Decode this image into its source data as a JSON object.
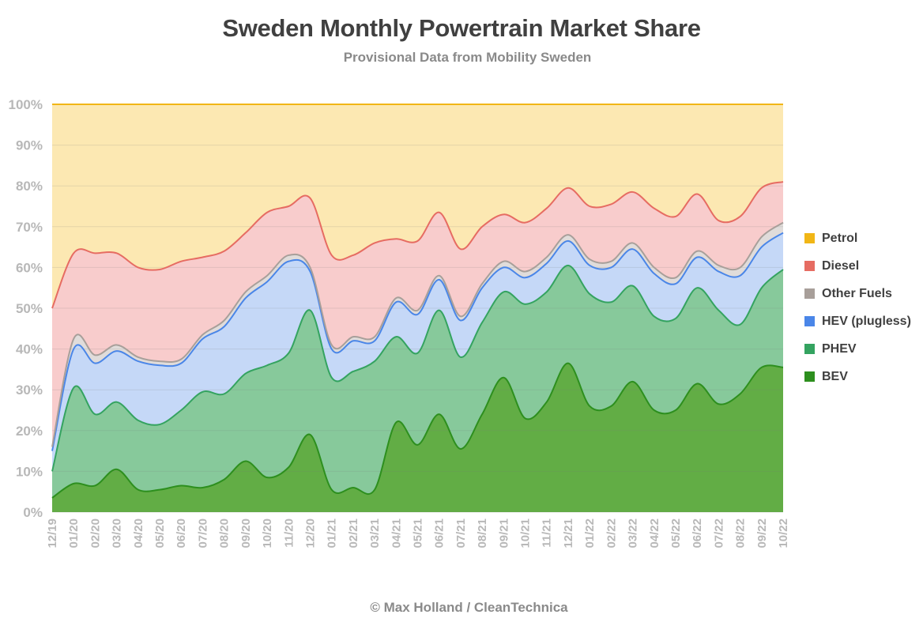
{
  "title": "Sweden Monthly Powertrain Market Share",
  "subtitle": "Provisional Data from Mobility Sweden",
  "credit": "© Max Holland / CleanTechnica",
  "chart_data": {
    "type": "area",
    "stacked": true,
    "ylim": [
      0,
      100
    ],
    "y_ticks": [
      "0%",
      "10%",
      "20%",
      "30%",
      "40%",
      "50%",
      "60%",
      "70%",
      "80%",
      "90%",
      "100%"
    ],
    "grid": true,
    "legend_position": "right",
    "categories": [
      "12/19",
      "01/20",
      "02/20",
      "03/20",
      "04/20",
      "05/20",
      "06/20",
      "07/20",
      "08/20",
      "09/20",
      "10/20",
      "11/20",
      "12/20",
      "01/21",
      "02/21",
      "03/21",
      "04/21",
      "05/21",
      "06/21",
      "07/21",
      "08/21",
      "09/21",
      "10/21",
      "11/21",
      "12/21",
      "01/22",
      "02/22",
      "03/22",
      "04/22",
      "05/22",
      "06/22",
      "07/22",
      "08/22",
      "09/22",
      "10/22"
    ],
    "series": [
      {
        "name": "BEV",
        "color": "#2d8f1e",
        "fill": "#62ad45",
        "values": [
          3.5,
          7,
          6.5,
          10.5,
          5.5,
          5.5,
          6.5,
          6,
          8,
          12.5,
          8.5,
          11,
          19,
          5.5,
          6,
          5.5,
          22,
          16.5,
          24,
          15.5,
          24,
          33,
          23,
          27,
          36.5,
          26,
          26,
          32,
          25,
          25,
          31.5,
          26.5,
          29,
          35.5,
          35.5
        ]
      },
      {
        "name": "PHEV",
        "color": "#34a360",
        "fill": "#87c99b",
        "values": [
          6.5,
          23.5,
          17.5,
          16.5,
          17,
          16,
          18.5,
          23.5,
          21,
          21.5,
          27.5,
          28,
          30.5,
          27.5,
          28.5,
          31.5,
          21,
          22.5,
          25.5,
          22.5,
          22.5,
          21,
          28,
          27,
          24,
          27.5,
          25.5,
          23.5,
          23,
          22.5,
          23.5,
          23,
          17,
          19.5,
          24
        ]
      },
      {
        "name": "HEV (plugless)",
        "color": "#4a86e8",
        "fill": "#c5d8f7",
        "values": [
          5,
          9.5,
          12.5,
          12.5,
          14.5,
          14.5,
          11.5,
          13,
          16.5,
          18.5,
          20.5,
          22.5,
          9.5,
          7,
          7.5,
          5,
          8.5,
          9.5,
          7.5,
          9,
          8.5,
          6,
          6.5,
          7,
          6,
          7,
          8.5,
          9,
          10.5,
          8.5,
          7.5,
          9.5,
          12,
          10,
          9
        ]
      },
      {
        "name": "Other Fuels",
        "color": "#a89f9a",
        "fill": "#e0dcda",
        "values": [
          1,
          2.5,
          2,
          1.5,
          1,
          1,
          1,
          1,
          1.5,
          1.5,
          1.5,
          1.5,
          1,
          1,
          1,
          1,
          1,
          1,
          1,
          1,
          1,
          1.5,
          1.5,
          1.5,
          1.5,
          1.5,
          1.5,
          1.5,
          1.5,
          1.5,
          1.5,
          1.5,
          2,
          2.5,
          2.5
        ]
      },
      {
        "name": "Diesel",
        "color": "#e66c62",
        "fill": "#f8cccc",
        "values": [
          34,
          21,
          25,
          22.5,
          22,
          22.5,
          24,
          19,
          17,
          14.5,
          15.5,
          12,
          17,
          22,
          20,
          23,
          14.5,
          17,
          15.5,
          16.5,
          14,
          11.5,
          12,
          12,
          11.5,
          13,
          14,
          12.5,
          14.5,
          15,
          14,
          11,
          12.5,
          12,
          10
        ]
      },
      {
        "name": "Petrol",
        "color": "#f1b616",
        "fill": "#fce8b2",
        "values": [
          50,
          36.5,
          36.5,
          36.5,
          40,
          40.5,
          38.5,
          37.5,
          36,
          31.5,
          26.5,
          25,
          23,
          37,
          37,
          34,
          33,
          33.5,
          26.5,
          35.5,
          30,
          27,
          29,
          25.5,
          20.5,
          25,
          24.5,
          21.5,
          25.5,
          27.5,
          22,
          29,
          27.5,
          20.5,
          19
        ]
      }
    ]
  }
}
